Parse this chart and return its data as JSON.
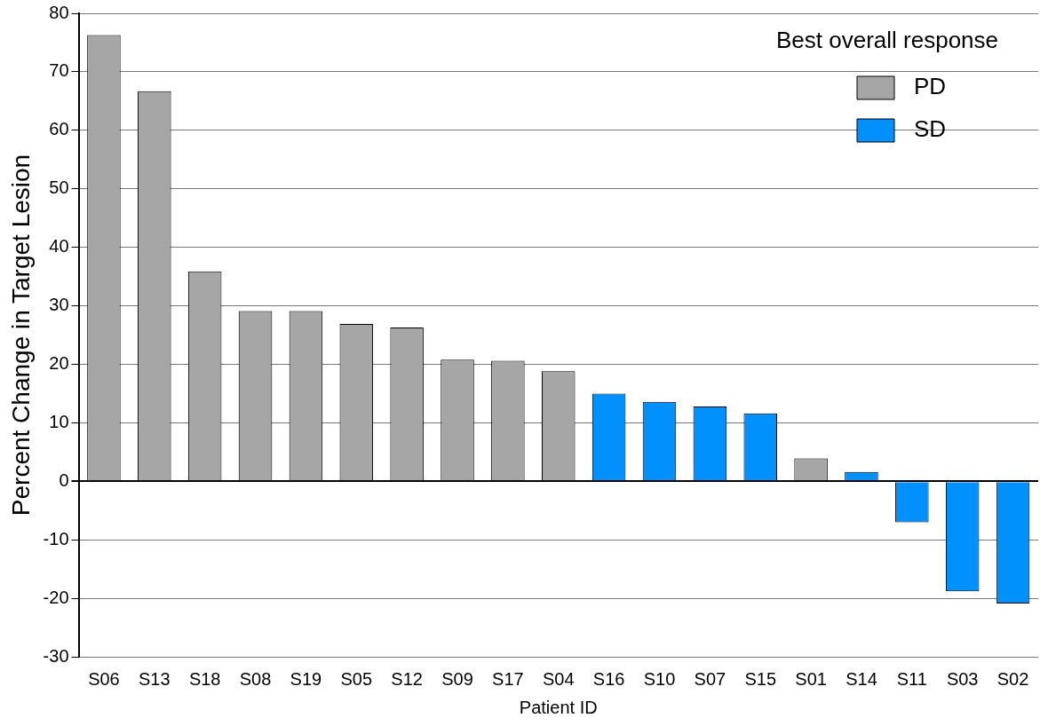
{
  "chart_data": {
    "type": "bar",
    "xlabel": "Patient ID",
    "ylabel": "Percent Change in Target Lesion",
    "legend_title": "Best overall response",
    "categories": [
      "S06",
      "S13",
      "S18",
      "S08",
      "S19",
      "S05",
      "S12",
      "S09",
      "S17",
      "S04",
      "S16",
      "S10",
      "S07",
      "S15",
      "S01",
      "S14",
      "S11",
      "S03",
      "S02"
    ],
    "series": [
      {
        "name": "PD",
        "color": "#a6a6a6",
        "values": [
          76.3,
          66.7,
          35.9,
          29.1,
          29.1,
          26.9,
          26.3,
          20.8,
          20.6,
          18.8,
          null,
          null,
          null,
          null,
          3.9,
          null,
          null,
          null,
          null
        ]
      },
      {
        "name": "SD",
        "color": "#0091ff",
        "values": [
          null,
          null,
          null,
          null,
          null,
          null,
          null,
          null,
          null,
          null,
          15.0,
          13.6,
          12.8,
          11.6,
          null,
          1.6,
          -7.0,
          -18.8,
          -20.9
        ]
      }
    ],
    "ylim": [
      -30,
      80
    ],
    "yticks": [
      -30,
      -20,
      -10,
      0,
      10,
      20,
      30,
      40,
      50,
      60,
      70,
      80
    ],
    "grid": "y",
    "legend": "top right"
  }
}
